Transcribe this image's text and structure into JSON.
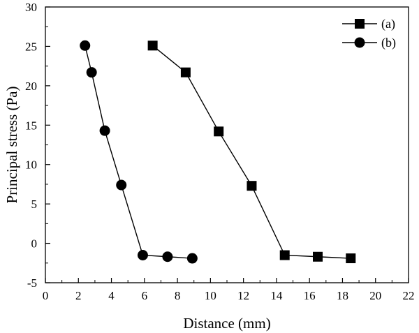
{
  "chart_data": {
    "type": "line",
    "title": "",
    "xlabel": "Distance (mm)",
    "ylabel": "Principal stress (Pa)",
    "xlim": [
      0,
      22
    ],
    "ylim": [
      -5,
      30
    ],
    "x_ticks": [
      0,
      2,
      4,
      6,
      8,
      10,
      12,
      14,
      16,
      18,
      20,
      22
    ],
    "y_ticks": [
      -5,
      0,
      5,
      10,
      15,
      20,
      25,
      30
    ],
    "grid": false,
    "legend_position": "top-right",
    "series": [
      {
        "name": "(a)",
        "marker": "square",
        "color": "#000000",
        "x": [
          6.5,
          8.5,
          10.5,
          12.5,
          14.5,
          16.5,
          18.5
        ],
        "y": [
          25.1,
          21.7,
          14.2,
          7.3,
          -1.5,
          -1.7,
          -1.9
        ]
      },
      {
        "name": "(b)",
        "marker": "circle",
        "color": "#000000",
        "x": [
          2.4,
          2.8,
          3.6,
          4.6,
          5.9,
          7.4,
          8.9
        ],
        "y": [
          25.1,
          21.7,
          14.3,
          7.4,
          -1.5,
          -1.7,
          -1.9
        ]
      }
    ]
  }
}
